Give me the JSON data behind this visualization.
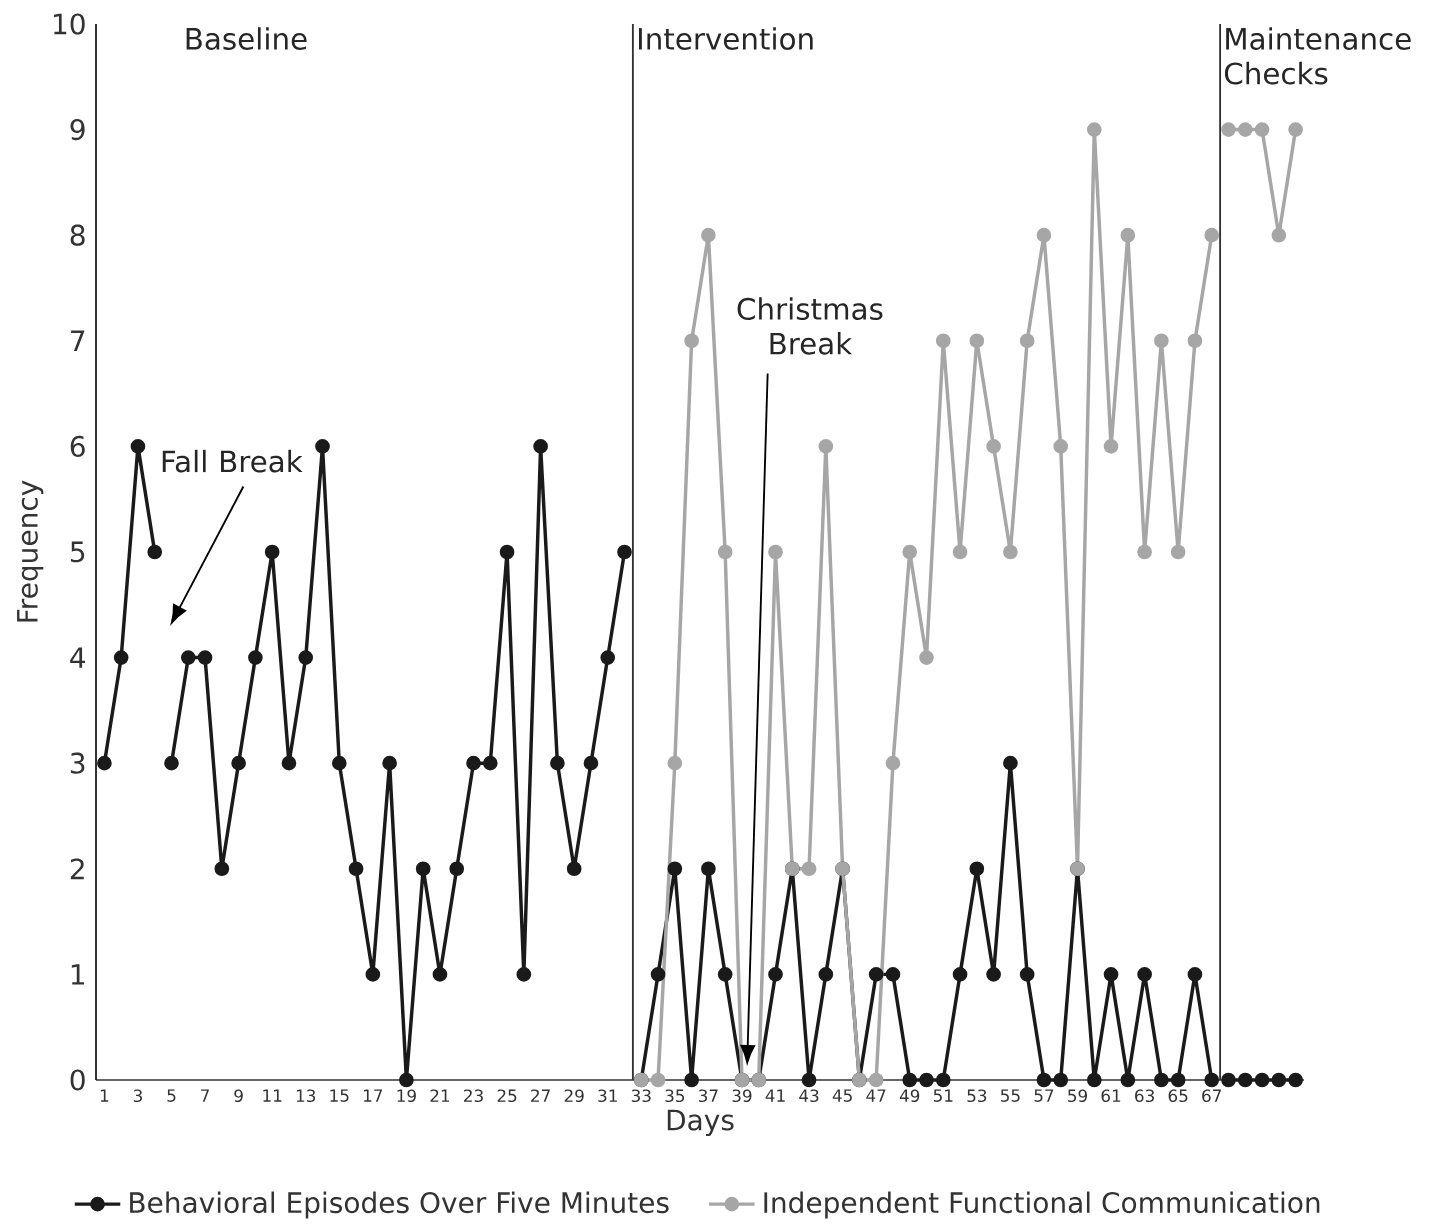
{
  "chart_data": {
    "type": "line",
    "xlabel": "Days",
    "ylabel": "Frequency",
    "xlim": [
      0.5,
      72.5
    ],
    "ylim": [
      0,
      10
    ],
    "xticks": [
      1,
      3,
      5,
      7,
      9,
      11,
      13,
      15,
      17,
      19,
      21,
      23,
      25,
      27,
      29,
      31,
      33,
      35,
      37,
      39,
      41,
      43,
      45,
      47,
      49,
      51,
      53,
      55,
      57,
      59,
      61,
      63,
      65,
      67
    ],
    "yticks": [
      0,
      1,
      2,
      3,
      4,
      5,
      6,
      7,
      8,
      9,
      10
    ],
    "marker": "circle",
    "line_style": "solid",
    "legend": "bottom",
    "series": [
      {
        "name": "Behavioral Episodes Over Five Minutes",
        "color": "#1a1a1a",
        "x": [
          1,
          2,
          3,
          4,
          4.5,
          5,
          6,
          7,
          8,
          9,
          10,
          11,
          12,
          13,
          14,
          15,
          16,
          17,
          18,
          19,
          20,
          21,
          22,
          23,
          24,
          25,
          26,
          27,
          28,
          29,
          30,
          31,
          32,
          32.5,
          33,
          34,
          35,
          36,
          37,
          38,
          39,
          40,
          41,
          42,
          43,
          44,
          45,
          46,
          47,
          48,
          49,
          50,
          51,
          52,
          53,
          54,
          55,
          56,
          57,
          58,
          59,
          60,
          61,
          62,
          63,
          64,
          65,
          66,
          67,
          67.5,
          68,
          69,
          70,
          71,
          72
        ],
        "values": [
          3,
          4,
          6,
          5,
          null,
          3,
          4,
          4,
          2,
          3,
          4,
          5,
          3,
          4,
          6,
          3,
          2,
          1,
          3,
          0,
          2,
          1,
          2,
          3,
          3,
          5,
          1,
          6,
          3,
          2,
          3,
          4,
          5,
          null,
          0,
          1,
          2,
          0,
          2,
          1,
          0,
          0,
          1,
          2,
          0,
          1,
          2,
          0,
          1,
          1,
          0,
          0,
          0,
          1,
          2,
          1,
          3,
          1,
          0,
          0,
          2,
          0,
          1,
          0,
          1,
          0,
          0,
          1,
          0,
          null,
          0,
          0,
          0,
          0,
          0
        ]
      },
      {
        "name": "Independent Functional Communication",
        "color": "#a6a6a6",
        "x": [
          33,
          34,
          35,
          36,
          37,
          38,
          39,
          40,
          41,
          42,
          43,
          44,
          45,
          46,
          47,
          48,
          49,
          50,
          51,
          52,
          53,
          54,
          55,
          56,
          57,
          58,
          59,
          60,
          61,
          62,
          63,
          64,
          65,
          66,
          67,
          67.5,
          68,
          69,
          70,
          71,
          72
        ],
        "values": [
          0,
          0,
          3,
          7,
          8,
          5,
          0,
          0,
          5,
          2,
          2,
          6,
          2,
          0,
          0,
          3,
          5,
          4,
          7,
          5,
          7,
          6,
          5,
          7,
          8,
          6,
          2,
          9,
          6,
          8,
          5,
          7,
          5,
          7,
          8,
          null,
          9,
          9,
          9,
          8,
          9
        ]
      }
    ],
    "ref_lines": [
      {
        "axis": "x",
        "value": 32.5,
        "label": "Intervention",
        "color": "#333333"
      },
      {
        "axis": "x",
        "value": 67.5,
        "label": "Maintenance Checks",
        "color": "#333333"
      }
    ],
    "annotations": [
      "Baseline",
      "Fall Break",
      "Christmas Break"
    ]
  }
}
